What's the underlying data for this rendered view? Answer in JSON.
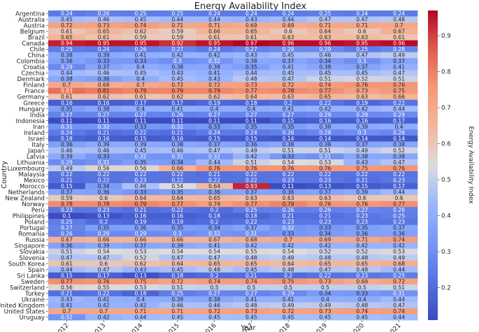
{
  "chart_data": {
    "type": "heatmap",
    "title": "Energy Availability Index",
    "xlabel": "Year",
    "ylabel": "Country",
    "colorbar_label": "Energy Availability Index",
    "colormap": "coolwarm",
    "vmin": 0.11,
    "vmax": 0.97,
    "colorbar_ticks": [
      0.2,
      0.3,
      0.4,
      0.5,
      0.6,
      0.7,
      0.8,
      0.9
    ],
    "x": [
      "2012",
      "2013",
      "2014",
      "2015",
      "2016",
      "2017",
      "2018",
      "2019",
      "2020",
      "2021"
    ],
    "y": [
      "Argentina",
      "Australia",
      "Austria",
      "Belgium",
      "Brazil",
      "Canada",
      "Chile",
      "China",
      "Colombia",
      "Croatia",
      "Czechia",
      "Denmark",
      "Finland",
      "France",
      "Germany",
      "Greece",
      "Hungary",
      "India",
      "Indonesia",
      "Iran",
      "Ireland",
      "Israel",
      "Italy",
      "Japan",
      "Latvia",
      "Lithuania",
      "Luxembourg",
      "Malaysia",
      "Mexico",
      "Morocco",
      "Netherlands",
      "New Zealand",
      "Norway",
      "Peru",
      "Philippines",
      "Poland",
      "Portugal",
      "Romania",
      "Russia",
      "Singapore",
      "Slovakia",
      "Slovenia",
      "South Korea",
      "Spain",
      "Sri Lanka",
      "Sweden",
      "Switzerland",
      "Turkey",
      "Ukraine",
      "United Kingdom",
      "United States",
      "Uruguay"
    ],
    "values": [
      [
        0.24,
        0.26,
        0.25,
        0.25,
        0.24,
        0.24,
        0.24,
        0.25,
        0.24,
        0.24
      ],
      [
        0.45,
        0.46,
        0.45,
        0.44,
        0.44,
        0.43,
        0.44,
        0.47,
        0.47,
        0.48
      ],
      [
        0.72,
        0.73,
        0.74,
        0.71,
        0.71,
        0.69,
        0.69,
        0.71,
        0.71,
        0.7
      ],
      [
        0.61,
        0.65,
        0.62,
        0.59,
        0.66,
        0.65,
        0.6,
        0.64,
        0.6,
        0.67
      ],
      [
        0.65,
        0.61,
        0.59,
        0.59,
        0.61,
        0.61,
        0.63,
        0.63,
        0.63,
        0.61
      ],
      [
        0.94,
        0.95,
        0.95,
        0.92,
        0.95,
        0.97,
        0.96,
        0.96,
        0.95,
        0.96
      ],
      [
        0.25,
        0.24,
        0.26,
        0.27,
        0.24,
        0.27,
        0.29,
        0.29,
        0.25,
        0.28
      ],
      [
        0.38,
        0.39,
        0.41,
        0.42,
        0.42,
        0.43,
        0.45,
        0.46,
        0.47,
        0.49
      ],
      [
        0.36,
        0.33,
        0.33,
        0.3,
        0.32,
        0.38,
        0.37,
        0.34,
        0.3,
        0.37
      ],
      [
        0.29,
        0.37,
        0.4,
        0.38,
        0.38,
        0.35,
        0.41,
        0.38,
        0.37,
        0.41
      ],
      [
        0.44,
        0.46,
        0.45,
        0.43,
        0.41,
        0.44,
        0.45,
        0.45,
        0.45,
        0.47
      ],
      [
        0.38,
        0.36,
        0.4,
        0.45,
        0.43,
        0.48,
        0.47,
        0.51,
        0.52,
        0.51
      ],
      [
        0.7,
        0.68,
        0.7,
        0.72,
        0.72,
        0.73,
        0.72,
        0.74,
        0.76,
        0.76
      ],
      [
        0.83,
        0.81,
        0.79,
        0.79,
        0.79,
        0.77,
        0.78,
        0.77,
        0.73,
        0.75
      ],
      [
        0.61,
        0.62,
        0.61,
        0.62,
        0.62,
        0.64,
        0.63,
        0.65,
        0.63,
        0.66
      ],
      [
        0.16,
        0.16,
        0.17,
        0.17,
        0.19,
        0.18,
        0.2,
        0.22,
        0.19,
        0.22
      ],
      [
        0.35,
        0.38,
        0.4,
        0.41,
        0.4,
        0.4,
        0.41,
        0.42,
        0.42,
        0.44
      ],
      [
        0.27,
        0.27,
        0.27,
        0.26,
        0.27,
        0.27,
        0.27,
        0.29,
        0.29,
        0.29
      ],
      [
        0.11,
        0.11,
        0.11,
        0.11,
        0.11,
        0.11,
        0.15,
        0.16,
        0.16,
        0.17
      ],
      [
        0.31,
        0.32,
        0.33,
        0.32,
        0.33,
        0.35,
        0.35,
        0.38,
        0.39,
        0.4
      ],
      [
        0.24,
        0.21,
        0.22,
        0.21,
        0.24,
        0.24,
        0.26,
        0.28,
        0.3,
        0.28
      ],
      [
        0.18,
        0.16,
        0.15,
        0.16,
        0.15,
        0.15,
        0.14,
        0.14,
        0.14,
        0.14
      ],
      [
        0.36,
        0.39,
        0.39,
        0.38,
        0.37,
        0.36,
        0.38,
        0.38,
        0.37,
        0.38
      ],
      [
        0.46,
        0.46,
        0.45,
        0.46,
        0.47,
        0.49,
        0.51,
        0.51,
        0.49,
        0.52
      ],
      [
        0.39,
        0.33,
        0.32,
        0.31,
        0.32,
        0.42,
        0.33,
        0.31,
        0.38,
        0.38
      ],
      [
        0.29,
        0.31,
        0.35,
        0.34,
        0.44,
        0.51,
        0.54,
        0.53,
        0.43,
        0.47
      ],
      [
        0.49,
        0.56,
        0.56,
        0.66,
        0.76,
        0.76,
        0.76,
        0.76,
        0.75,
        0.76
      ],
      [
        0.22,
        0.22,
        0.22,
        0.22,
        0.21,
        0.22,
        0.22,
        0.22,
        0.22,
        0.22
      ],
      [
        0.21,
        0.22,
        0.23,
        0.22,
        0.22,
        0.22,
        0.23,
        0.23,
        0.21,
        0.23
      ],
      [
        0.15,
        0.34,
        0.46,
        0.54,
        0.64,
        0.93,
        0.11,
        0.13,
        0.15,
        0.17
      ],
      [
        0.37,
        0.36,
        0.33,
        0.35,
        0.36,
        0.37,
        0.36,
        0.37,
        0.39,
        0.44
      ],
      [
        0.59,
        0.6,
        0.64,
        0.64,
        0.65,
        0.63,
        0.63,
        0.63,
        0.6,
        0.6
      ],
      [
        0.78,
        0.78,
        0.79,
        0.77,
        0.74,
        0.77,
        0.79,
        0.76,
        0.76,
        0.77
      ],
      [
        0.23,
        0.23,
        0.21,
        0.22,
        0.2,
        0.25,
        0.26,
        0.26,
        0.27,
        0.26
      ],
      [
        0.1,
        0.13,
        0.16,
        0.16,
        0.18,
        0.18,
        0.21,
        0.21,
        0.23,
        0.25
      ],
      [
        0.25,
        0.2,
        0.19,
        0.19,
        0.2,
        0.22,
        0.23,
        0.23,
        0.23,
        0.23
      ],
      [
        0.27,
        0.35,
        0.36,
        0.35,
        0.34,
        0.37,
        0.32,
        0.33,
        0.35,
        0.37
      ],
      [
        0.26,
        0.29,
        0.29,
        0.3,
        0.32,
        0.31,
        0.33,
        0.34,
        0.36,
        0.36
      ],
      [
        0.67,
        0.66,
        0.66,
        0.66,
        0.67,
        0.68,
        0.7,
        0.69,
        0.71,
        0.74
      ],
      [
        0.36,
        0.39,
        0.37,
        0.39,
        0.41,
        0.42,
        0.42,
        0.42,
        0.42,
        0.42
      ],
      [
        0.51,
        0.54,
        0.53,
        0.54,
        0.54,
        0.55,
        0.54,
        0.52,
        0.52,
        0.53
      ],
      [
        0.47,
        0.47,
        0.52,
        0.47,
        0.47,
        0.48,
        0.49,
        0.48,
        0.48,
        0.49
      ],
      [
        0.61,
        0.6,
        0.62,
        0.64,
        0.65,
        0.65,
        0.64,
        0.65,
        0.65,
        0.68
      ],
      [
        0.44,
        0.47,
        0.43,
        0.45,
        0.48,
        0.45,
        0.48,
        0.47,
        0.48,
        0.44
      ],
      [
        0.15,
        0.17,
        0.13,
        0.18,
        0.2,
        0.21,
        0.2,
        0.22,
        0.23,
        0.25
      ],
      [
        0.77,
        0.76,
        0.75,
        0.72,
        0.74,
        0.74,
        0.75,
        0.73,
        0.69,
        0.72
      ],
      [
        0.56,
        0.55,
        0.53,
        0.51,
        0.5,
        0.5,
        0.5,
        0.5,
        0.5,
        0.51
      ],
      [
        0.21,
        0.22,
        0.18,
        0.25,
        0.27,
        0.27,
        0.29,
        0.34,
        0.33,
        0.31
      ],
      [
        0.43,
        0.41,
        0.4,
        0.39,
        0.38,
        0.41,
        0.41,
        0.4,
        0.4,
        0.44
      ],
      [
        0.41,
        0.42,
        0.42,
        0.46,
        0.46,
        0.48,
        0.49,
        0.49,
        0.48,
        0.47
      ],
      [
        0.7,
        0.7,
        0.71,
        0.71,
        0.72,
        0.73,
        0.72,
        0.73,
        0.74,
        0.74
      ],
      [
        0.32,
        0.42,
        0.44,
        0.45,
        0.45,
        0.45,
        0.45,
        0.45,
        0.45,
        0.44
      ]
    ]
  }
}
